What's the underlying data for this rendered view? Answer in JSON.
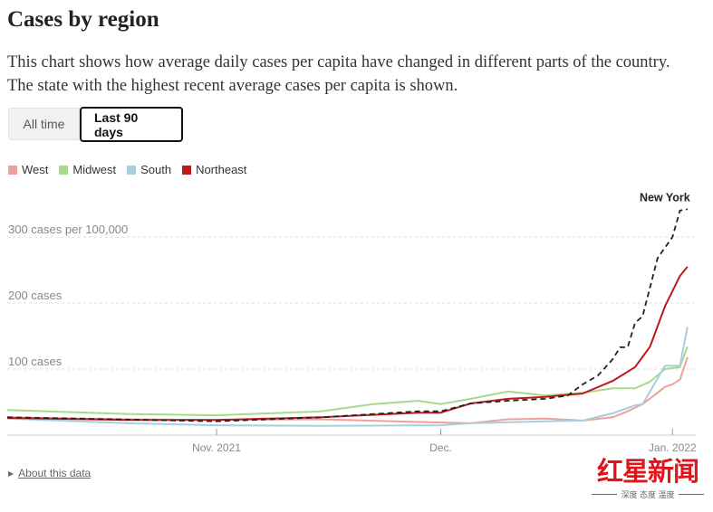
{
  "header": {
    "title": "Cases by region",
    "description": "This chart shows how average daily cases per capita have changed in different parts of the country. The state with the highest recent average cases per capita is shown."
  },
  "tabs": [
    {
      "label": "All time",
      "selected": false
    },
    {
      "label": "Last 90 days",
      "selected": true
    }
  ],
  "footer": {
    "about_label": "About this data",
    "about_icon": "triangle-right-icon"
  },
  "watermark": {
    "text": "红星新闻",
    "tagline": "深度 态度 温度"
  },
  "chart_data": {
    "type": "line",
    "xlabel": "",
    "ylabel": "",
    "x_range": [
      "2021-10-04",
      "2022-01-03"
    ],
    "ylim": [
      0,
      350
    ],
    "grid": true,
    "legend_placement": "top-left",
    "y_ticks": [
      {
        "value": 100,
        "label": "100 cases"
      },
      {
        "value": 200,
        "label": "200 cases"
      },
      {
        "value": 300,
        "label": "300 cases per 100,000"
      }
    ],
    "x_ticks": [
      {
        "date": "2021-11-01",
        "label": "Nov. 2021"
      },
      {
        "date": "2021-12-01",
        "label": "Dec."
      },
      {
        "date": "2022-01-01",
        "label": "Jan. 2022"
      }
    ],
    "series": [
      {
        "name": "West",
        "color": "#f0a09c",
        "points": [
          [
            "2021-10-04",
            27
          ],
          [
            "2021-10-20",
            24
          ],
          [
            "2021-11-01",
            23
          ],
          [
            "2021-11-15",
            24
          ],
          [
            "2021-12-01",
            19
          ],
          [
            "2021-12-05",
            18
          ],
          [
            "2021-12-10",
            24
          ],
          [
            "2021-12-15",
            25
          ],
          [
            "2021-12-20",
            22
          ],
          [
            "2021-12-24",
            27
          ],
          [
            "2021-12-26",
            36
          ],
          [
            "2021-12-28",
            47
          ],
          [
            "2021-12-30",
            64
          ],
          [
            "2021-12-31",
            73
          ],
          [
            "2022-01-01",
            77
          ],
          [
            "2022-01-02",
            84
          ],
          [
            "2022-01-03",
            118
          ]
        ]
      },
      {
        "name": "Midwest",
        "color": "#a7d98b",
        "points": [
          [
            "2021-10-04",
            38
          ],
          [
            "2021-10-20",
            32
          ],
          [
            "2021-11-01",
            30
          ],
          [
            "2021-11-15",
            36
          ],
          [
            "2021-11-22",
            47
          ],
          [
            "2021-11-28",
            52
          ],
          [
            "2021-12-01",
            47
          ],
          [
            "2021-12-05",
            55
          ],
          [
            "2021-12-10",
            66
          ],
          [
            "2021-12-15",
            60
          ],
          [
            "2021-12-20",
            64
          ],
          [
            "2021-12-24",
            71
          ],
          [
            "2021-12-27",
            71
          ],
          [
            "2021-12-29",
            81
          ],
          [
            "2021-12-31",
            100
          ],
          [
            "2022-01-02",
            103
          ],
          [
            "2022-01-03",
            134
          ]
        ]
      },
      {
        "name": "South",
        "color": "#a6d0dd",
        "points": [
          [
            "2021-10-04",
            25
          ],
          [
            "2021-10-20",
            18
          ],
          [
            "2021-11-01",
            15
          ],
          [
            "2021-11-15",
            14
          ],
          [
            "2021-12-01",
            15
          ],
          [
            "2021-12-05",
            18
          ],
          [
            "2021-12-15",
            21
          ],
          [
            "2021-12-20",
            22
          ],
          [
            "2021-12-24",
            33
          ],
          [
            "2021-12-27",
            45
          ],
          [
            "2021-12-28",
            47
          ],
          [
            "2021-12-29",
            66
          ],
          [
            "2021-12-31",
            105
          ],
          [
            "2022-01-02",
            105
          ],
          [
            "2022-01-03",
            164
          ]
        ]
      },
      {
        "name": "Northeast",
        "color": "#bb1a1a",
        "points": [
          [
            "2021-10-04",
            26
          ],
          [
            "2021-10-20",
            23
          ],
          [
            "2021-11-01",
            23
          ],
          [
            "2021-11-15",
            27
          ],
          [
            "2021-11-28",
            34
          ],
          [
            "2021-12-01",
            34
          ],
          [
            "2021-12-05",
            48
          ],
          [
            "2021-12-10",
            55
          ],
          [
            "2021-12-15",
            58
          ],
          [
            "2021-12-20",
            63
          ],
          [
            "2021-12-24",
            82
          ],
          [
            "2021-12-27",
            103
          ],
          [
            "2021-12-29",
            134
          ],
          [
            "2021-12-31",
            195
          ],
          [
            "2022-01-02",
            241
          ],
          [
            "2022-01-03",
            255
          ]
        ]
      },
      {
        "name": "New York",
        "color": "#222222",
        "dashed": true,
        "label": "New York",
        "points": [
          [
            "2021-10-04",
            27
          ],
          [
            "2021-11-01",
            21
          ],
          [
            "2021-11-15",
            27
          ],
          [
            "2021-11-28",
            36
          ],
          [
            "2021-12-01",
            36
          ],
          [
            "2021-12-05",
            48
          ],
          [
            "2021-12-10",
            52
          ],
          [
            "2021-12-15",
            55
          ],
          [
            "2021-12-18",
            60
          ],
          [
            "2021-12-20",
            77
          ],
          [
            "2021-12-22",
            90
          ],
          [
            "2021-12-24",
            115
          ],
          [
            "2021-12-25",
            133
          ],
          [
            "2021-12-26",
            133
          ],
          [
            "2021-12-27",
            170
          ],
          [
            "2021-12-28",
            180
          ],
          [
            "2021-12-30",
            268
          ],
          [
            "2022-01-01",
            300
          ],
          [
            "2022-01-02",
            340
          ],
          [
            "2022-01-03",
            342
          ]
        ]
      }
    ]
  }
}
